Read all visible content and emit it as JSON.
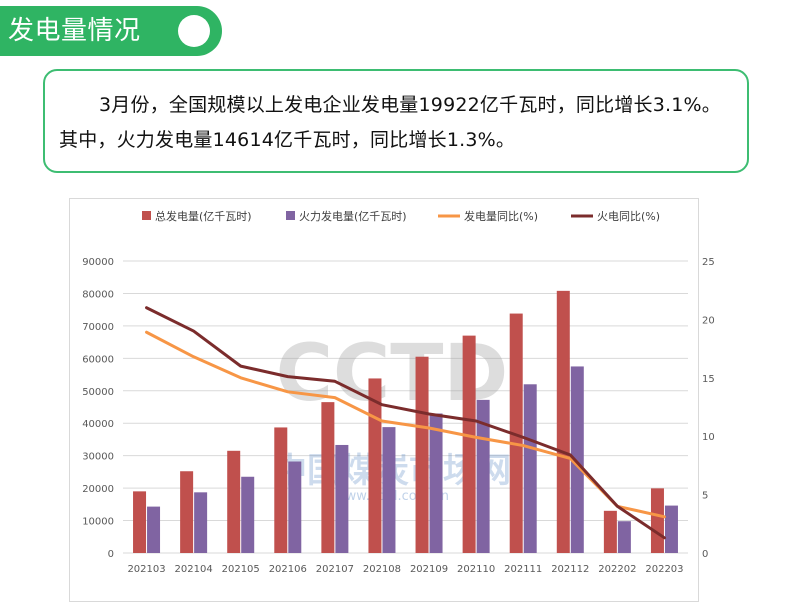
{
  "header": {
    "title": "发电量情况"
  },
  "summary": {
    "text": "3月份，全国规模以上发电企业发电量19922亿千瓦时，同比增长3.1%。其中，火力发电量14614亿千瓦时，同比增长1.3%。"
  },
  "watermark": {
    "logo": "CCTD",
    "name": "中国煤炭市场网",
    "url": "www.cctd.com.cn"
  },
  "chart_data": {
    "type": "bar",
    "categories": [
      "202103",
      "202104",
      "202105",
      "202106",
      "202107",
      "202108",
      "202109",
      "202110",
      "202111",
      "202112",
      "202202",
      "202203"
    ],
    "series": [
      {
        "name": "总发电量(亿千瓦时)",
        "kind": "bar",
        "axis": "left",
        "color": "#c0504d",
        "values": [
          19000,
          25200,
          31500,
          38700,
          46500,
          53800,
          60500,
          67000,
          73800,
          80800,
          13000,
          19922
        ]
      },
      {
        "name": "火力发电量(亿千瓦时)",
        "kind": "bar",
        "axis": "left",
        "color": "#8064a2",
        "values": [
          14300,
          18700,
          23500,
          28200,
          33300,
          38800,
          43000,
          47200,
          52000,
          57500,
          9800,
          14614
        ]
      },
      {
        "name": "发电量同比(%)",
        "kind": "line",
        "axis": "right",
        "color": "#f79646",
        "values": [
          18.9,
          16.8,
          15.0,
          13.8,
          13.3,
          11.3,
          10.7,
          9.9,
          9.2,
          8.1,
          4.0,
          3.1
        ]
      },
      {
        "name": "火电同比(%)",
        "kind": "line",
        "axis": "right",
        "color": "#7b2c2c",
        "values": [
          21.0,
          19.0,
          16.0,
          15.1,
          14.7,
          12.7,
          11.9,
          11.3,
          9.9,
          8.4,
          4.0,
          1.3
        ]
      }
    ],
    "yticks_left": [
      "0",
      "10000",
      "20000",
      "30000",
      "40000",
      "50000",
      "60000",
      "70000",
      "80000",
      "90000"
    ],
    "yticks_right": [
      "0",
      "5",
      "10",
      "15",
      "20",
      "25"
    ],
    "ylim_left": [
      0,
      90000
    ],
    "ylim_right": [
      0,
      25
    ],
    "grid": true,
    "legend": "top"
  }
}
